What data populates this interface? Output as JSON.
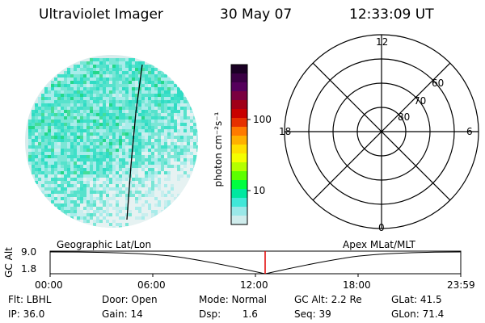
{
  "header": {
    "instrument": "Ultraviolet Imager",
    "date": "30 May 07",
    "time": "12:33:09 UT"
  },
  "colorbar": {
    "label": "photon cm⁻²s⁻¹",
    "ticks": [
      "100",
      "10"
    ],
    "colors": [
      "#1a0024",
      "#3a0044",
      "#55005c",
      "#7a0040",
      "#a00018",
      "#c80000",
      "#e63000",
      "#ff7a00",
      "#ffb000",
      "#ffe000",
      "#f4ff00",
      "#b4ff00",
      "#5cff00",
      "#00ff40",
      "#00e8a0",
      "#40e8d8",
      "#9ae8e8",
      "#cfecec"
    ]
  },
  "polar": {
    "mlt_labels": {
      "top": "12",
      "left": "18",
      "right": "6",
      "bottom": "0"
    },
    "lat_labels": [
      "80",
      "70",
      "60"
    ]
  },
  "timeline": {
    "left_label": "Geographic Lat/Lon",
    "right_label": "Apex MLat/MLT",
    "y_title": "GC Alt",
    "y_ticks": [
      "9.0",
      "1.8"
    ],
    "x_ticks": [
      "00:00",
      "06:00",
      "12:00",
      "18:00",
      "23:59"
    ]
  },
  "footer": {
    "row1": {
      "filter": "Flt: LBHL",
      "door": "Door: Open",
      "mode": "Mode:  Normal",
      "gc_alt": "GC Alt: 2.2 Re",
      "glat": "GLat:  41.5"
    },
    "row2": {
      "ip": "IP: 36.0",
      "gain": "Gain: 14",
      "dsp": "Dsp:       1.6",
      "seq": "Seq: 39",
      "glon": "GLon:  71.4"
    }
  }
}
